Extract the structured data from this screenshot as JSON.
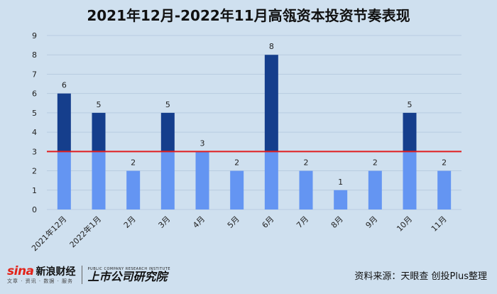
{
  "title": "2021年12月-2022年11月高瓴资本投资节奏表现",
  "footer": {
    "sina_logo_text": "sina",
    "sina_logo_cn": "新浪财经",
    "sina_logo_sub": "文章 · 资讯 · 数据 · 服务",
    "research_logo_en": "PUBLIC COMPANY RESEARCH INSTITUTE",
    "research_logo_cn": "上市公司研究院",
    "source": "资料来源：天眼查 创投Plus整理"
  },
  "colors": {
    "background": "#cfe0ef",
    "bar_light": "#6495f2",
    "bar_dark": "#153e8c",
    "reference_line": "#e11d1d",
    "grid": "#b8cbe0"
  },
  "chart_data": {
    "type": "bar",
    "categories": [
      "2021年12月",
      "2022年1月",
      "2月",
      "3月",
      "4月",
      "5月",
      "6月",
      "7月",
      "8月",
      "9月",
      "10月",
      "11月"
    ],
    "values": [
      6,
      5,
      2,
      5,
      3,
      2,
      8,
      2,
      1,
      2,
      5,
      2
    ],
    "threshold": 3,
    "ylim": [
      0,
      9
    ],
    "yticks": [
      0,
      1,
      2,
      3,
      4,
      5,
      6,
      7,
      8,
      9
    ],
    "grid": true,
    "xlabel": "",
    "ylabel": ""
  }
}
